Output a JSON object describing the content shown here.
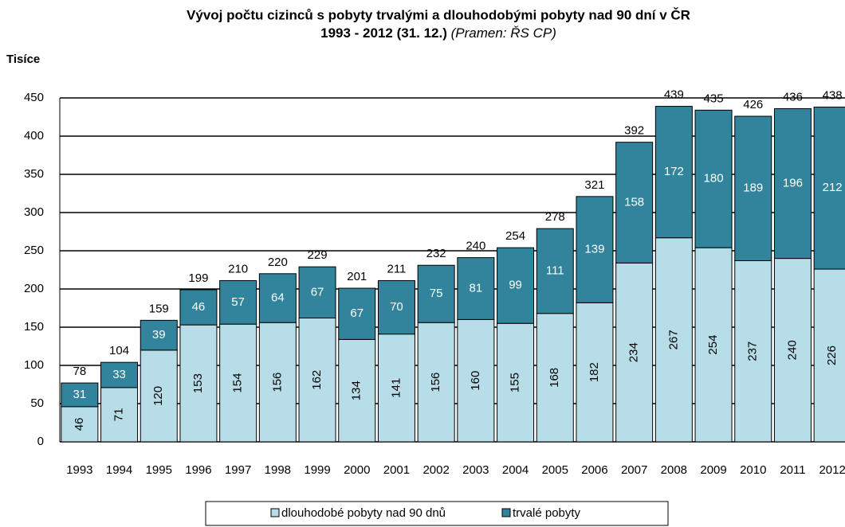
{
  "chart_data": {
    "type": "stacked_bar",
    "title": "Vývoj počtu cizinců s pobyty trvalými a dlouhodobými pobyty nad 90 dní v ČR",
    "subtitle": "1993 - 2012 (31. 12.)",
    "source": "(Pramen: ŘS CP)",
    "y_label": "Tisíce",
    "categories": [
      "1993",
      "1994",
      "1995",
      "1996",
      "1997",
      "1998",
      "1999",
      "2000",
      "2001",
      "2002",
      "2003",
      "2004",
      "2005",
      "2006",
      "2007",
      "2008",
      "2009",
      "2010",
      "2011",
      "2012"
    ],
    "series": [
      {
        "name": "dlouhodobé pobyty nad 90 dnů",
        "color": "#b7dde8",
        "values": [
          46,
          71,
          120,
          153,
          154,
          156,
          162,
          134,
          141,
          156,
          160,
          155,
          168,
          182,
          234,
          267,
          254,
          237,
          240,
          226
        ]
      },
      {
        "name": "trvalé pobyty",
        "color": "#31849b",
        "values": [
          31,
          33,
          39,
          46,
          57,
          64,
          67,
          67,
          70,
          75,
          81,
          99,
          111,
          139,
          158,
          172,
          180,
          189,
          196,
          212
        ]
      }
    ],
    "totals": [
      78,
      104,
      159,
      199,
      210,
      220,
      229,
      201,
      211,
      232,
      240,
      254,
      278,
      321,
      392,
      439,
      435,
      426,
      436,
      438
    ],
    "ylim": [
      0,
      450
    ],
    "yticks": [
      0,
      50,
      100,
      150,
      200,
      250,
      300,
      350,
      400,
      450
    ],
    "grid": true
  }
}
